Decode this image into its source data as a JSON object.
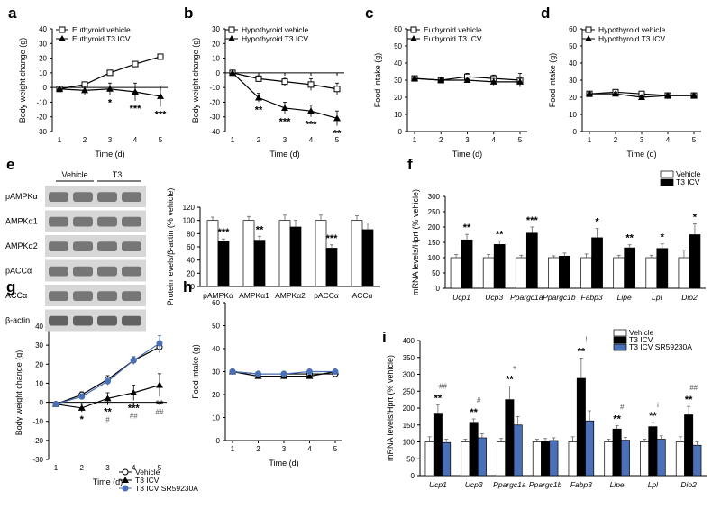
{
  "colors": {
    "black": "#000000",
    "white": "#ffffff",
    "blue": "#4a70b8",
    "blot_bg": "#d7d7d7",
    "blot_band": "#555555"
  },
  "chart_data": [
    {
      "id": "a",
      "type": "line",
      "panel_label": "a",
      "xlabel": "Time (d)",
      "ylabel": "Body weight change (g)",
      "xticks": [
        1,
        2,
        3,
        4,
        5
      ],
      "yticks": [
        -30,
        -20,
        -10,
        0,
        10,
        20,
        30,
        40
      ],
      "ylim": [
        -30,
        40
      ],
      "legend": "top-left",
      "series": [
        {
          "name": "Euthyroid vehicle",
          "marker": "open-square",
          "x": [
            1,
            2,
            3,
            4,
            5
          ],
          "y": [
            -1,
            2,
            10,
            16,
            21
          ],
          "err": [
            1,
            1.5,
            1.5,
            1.5,
            1.5
          ]
        },
        {
          "name": "Euthyroid T3 ICV",
          "marker": "filled-triangle",
          "x": [
            1,
            2,
            3,
            4,
            5
          ],
          "y": [
            -1,
            -2,
            -1,
            -3,
            -6
          ],
          "err": [
            1,
            3,
            4,
            6,
            7
          ]
        }
      ],
      "annotations": [
        {
          "x": 3,
          "text": "*"
        },
        {
          "x": 4,
          "text": "***"
        },
        {
          "x": 5,
          "text": "***"
        }
      ]
    },
    {
      "id": "b",
      "type": "line",
      "panel_label": "b",
      "xlabel": "Time (d)",
      "ylabel": "Body weight change (g)",
      "xticks": [
        1,
        2,
        3,
        4,
        5
      ],
      "yticks": [
        -40,
        -30,
        -20,
        -10,
        0,
        10,
        20,
        30
      ],
      "ylim": [
        -40,
        30
      ],
      "legend": "top-left",
      "series": [
        {
          "name": "Hypothyroid vehicle",
          "marker": "open-square",
          "x": [
            1,
            2,
            3,
            4,
            5
          ],
          "y": [
            0,
            -4,
            -6,
            -8,
            -11
          ],
          "err": [
            0,
            2,
            3,
            4,
            4
          ]
        },
        {
          "name": "Hypothyroid T3 ICV",
          "marker": "filled-triangle",
          "x": [
            1,
            2,
            3,
            4,
            5
          ],
          "y": [
            0,
            -17,
            -24,
            -26,
            -31
          ],
          "err": [
            0,
            3,
            4,
            4,
            5
          ]
        }
      ],
      "annotations": [
        {
          "x": 2,
          "text": "**"
        },
        {
          "x": 3,
          "text": "***"
        },
        {
          "x": 4,
          "text": "***"
        },
        {
          "x": 5,
          "text": "**"
        }
      ]
    },
    {
      "id": "c",
      "type": "line",
      "panel_label": "c",
      "xlabel": "Time (d)",
      "ylabel": "Food intake (g)",
      "xticks": [
        1,
        2,
        3,
        4,
        5
      ],
      "yticks": [
        0,
        10,
        20,
        30,
        40,
        50,
        60
      ],
      "ylim": [
        0,
        60
      ],
      "legend": "top-left",
      "series": [
        {
          "name": "Euthyroid vehicle",
          "marker": "open-square",
          "x": [
            1,
            2,
            3,
            4,
            5
          ],
          "y": [
            31,
            30,
            32,
            31,
            30
          ],
          "err": [
            1,
            1,
            2,
            2,
            4
          ]
        },
        {
          "name": "Euthyroid T3 ICV",
          "marker": "filled-triangle",
          "x": [
            1,
            2,
            3,
            4,
            5
          ],
          "y": [
            31,
            30,
            30,
            29,
            29
          ],
          "err": [
            1,
            1,
            1,
            2,
            2
          ]
        }
      ],
      "annotations": []
    },
    {
      "id": "d",
      "type": "line",
      "panel_label": "d",
      "xlabel": "Time (d)",
      "ylabel": "Food intake (g)",
      "xticks": [
        1,
        2,
        3,
        4,
        5
      ],
      "yticks": [
        0,
        10,
        20,
        30,
        40,
        50,
        60
      ],
      "ylim": [
        0,
        60
      ],
      "legend": "top-left",
      "series": [
        {
          "name": "Hypothyroid vehicle",
          "marker": "open-square",
          "x": [
            1,
            2,
            3,
            4,
            5
          ],
          "y": [
            22,
            23,
            22,
            21,
            21
          ],
          "err": [
            1,
            1,
            1,
            1,
            1
          ]
        },
        {
          "name": "Hypothyroid T3 ICV",
          "marker": "filled-triangle",
          "x": [
            1,
            2,
            3,
            4,
            5
          ],
          "y": [
            22,
            22,
            20,
            21,
            21
          ],
          "err": [
            1,
            1,
            1,
            1,
            1
          ]
        }
      ],
      "annotations": []
    },
    {
      "id": "e",
      "type": "bar",
      "panel_label": "e",
      "ylabel": "Protein levels/β-actin (% vehicle)",
      "categories": [
        "pAMPKα",
        "AMPKα1",
        "AMPKα2",
        "pACCα",
        "ACCα"
      ],
      "yticks": [
        0,
        20,
        40,
        60,
        80,
        100,
        120
      ],
      "ylim": [
        0,
        120
      ],
      "series": [
        {
          "fill": "white",
          "values": [
            100,
            100,
            100,
            100,
            100
          ],
          "err": [
            5,
            6,
            8,
            8,
            7
          ]
        },
        {
          "fill": "black",
          "values": [
            68,
            70,
            90,
            58,
            86
          ],
          "err": [
            4,
            6,
            10,
            5,
            10
          ]
        }
      ],
      "annotations": [
        {
          "category": "pAMPKα",
          "text": "***"
        },
        {
          "category": "AMPKα1",
          "text": "**"
        },
        {
          "category": "pACCα",
          "text": "***"
        }
      ]
    },
    {
      "id": "f",
      "type": "bar",
      "panel_label": "f",
      "ylabel": "mRNA levels/Hprt (% vehicle)",
      "categories": [
        "Ucp1",
        "Ucp3",
        "Ppargc1a",
        "Ppargc1b",
        "Fabp3",
        "Lipe",
        "Lpl",
        "Dio2"
      ],
      "yticks": [
        0,
        50,
        100,
        150,
        200,
        250,
        300
      ],
      "ylim": [
        0,
        300
      ],
      "legend": "top-right",
      "series": [
        {
          "name": "Vehicle",
          "fill": "white",
          "values": [
            100,
            100,
            100,
            100,
            100,
            100,
            100,
            100
          ],
          "err": [
            10,
            10,
            8,
            6,
            12,
            8,
            8,
            25
          ]
        },
        {
          "name": "T3 ICV",
          "fill": "black",
          "values": [
            158,
            143,
            180,
            105,
            165,
            132,
            130,
            175
          ],
          "err": [
            18,
            12,
            20,
            10,
            30,
            10,
            15,
            35
          ]
        }
      ],
      "annotations": [
        {
          "category": "Ucp1",
          "text": "**"
        },
        {
          "category": "Ucp3",
          "text": "**"
        },
        {
          "category": "Ppargc1a",
          "text": "***"
        },
        {
          "category": "Fabp3",
          "text": "*"
        },
        {
          "category": "Lipe",
          "text": "**"
        },
        {
          "category": "Lpl",
          "text": "*"
        },
        {
          "category": "Dio2",
          "text": "*"
        }
      ]
    },
    {
      "id": "g",
      "type": "line",
      "panel_label": "g",
      "xlabel": "Time (d)",
      "ylabel": "Body weight change (g)",
      "xticks": [
        1,
        2,
        3,
        4,
        5
      ],
      "yticks": [
        -30,
        -20,
        -10,
        0,
        10,
        20,
        30,
        40
      ],
      "ylim": [
        -30,
        40
      ],
      "legend": "bottom",
      "series": [
        {
          "name": "Vehicle",
          "marker": "open-circle",
          "color": "black",
          "x": [
            1,
            2,
            3,
            4,
            5
          ],
          "y": [
            -1,
            4,
            12,
            22,
            29
          ],
          "err": [
            1,
            1.5,
            2,
            2,
            3
          ]
        },
        {
          "name": "T3 ICV",
          "marker": "filled-triangle",
          "color": "black",
          "x": [
            1,
            2,
            3,
            4,
            5
          ],
          "y": [
            -1,
            -3,
            2,
            5,
            9
          ],
          "err": [
            1,
            2,
            3,
            4,
            6
          ]
        },
        {
          "name": "T3 ICV SR59230A",
          "marker": "filled-circle",
          "color": "blue",
          "x": [
            1,
            2,
            3,
            4,
            5
          ],
          "y": [
            -1,
            3,
            11,
            22,
            31
          ],
          "err": [
            1,
            1.5,
            2,
            2,
            4
          ]
        }
      ],
      "annotations": [
        {
          "x": 2,
          "text": "*"
        },
        {
          "x": 3,
          "text": "**"
        },
        {
          "x": 3,
          "text": "#"
        },
        {
          "x": 4,
          "text": "***"
        },
        {
          "x": 4,
          "text": "##"
        },
        {
          "x": 5,
          "text": "**"
        },
        {
          "x": 5,
          "text": "##"
        }
      ]
    },
    {
      "id": "h",
      "type": "line",
      "panel_label": "h",
      "xlabel": "Time (d)",
      "ylabel": "Food intake (g)",
      "xticks": [
        1,
        2,
        3,
        4,
        5
      ],
      "yticks": [
        0,
        10,
        20,
        30,
        40,
        50,
        60
      ],
      "ylim": [
        0,
        60
      ],
      "series": [
        {
          "marker": "open-circle",
          "color": "black",
          "x": [
            1,
            2,
            3,
            4,
            5
          ],
          "y": [
            30,
            29,
            29,
            29,
            29
          ],
          "err": [
            0.5,
            1,
            1,
            1,
            1
          ]
        },
        {
          "marker": "filled-triangle",
          "color": "black",
          "x": [
            1,
            2,
            3,
            4,
            5
          ],
          "y": [
            30,
            28,
            28,
            28,
            30
          ],
          "err": [
            0.5,
            1,
            1,
            1,
            1
          ]
        },
        {
          "marker": "filled-circle",
          "color": "blue",
          "x": [
            1,
            2,
            3,
            4,
            5
          ],
          "y": [
            30,
            29,
            29,
            30,
            30
          ],
          "err": [
            0.5,
            1,
            1,
            1,
            1
          ]
        }
      ],
      "annotations": []
    },
    {
      "id": "i",
      "type": "bar",
      "panel_label": "i",
      "ylabel": "mRNA levels/Hprt (% vehicle)",
      "categories": [
        "Ucp1",
        "Ucp3",
        "Ppargc1a",
        "Ppargc1b",
        "Fabp3",
        "Lipe",
        "Lpl",
        "Dio2"
      ],
      "yticks": [
        0,
        50,
        100,
        150,
        200,
        250,
        300,
        350,
        400
      ],
      "ylim": [
        0,
        400
      ],
      "legend": "top-right",
      "series": [
        {
          "name": "Vehicle",
          "fill": "white",
          "values": [
            100,
            100,
            100,
            100,
            100,
            100,
            100,
            100
          ],
          "err": [
            15,
            8,
            10,
            8,
            15,
            8,
            8,
            15
          ]
        },
        {
          "name": "T3 ICV",
          "fill": "black",
          "values": [
            185,
            158,
            225,
            102,
            288,
            138,
            145,
            180
          ],
          "err": [
            25,
            10,
            40,
            8,
            60,
            10,
            12,
            25
          ]
        },
        {
          "name": "T3 ICV SR59230A",
          "fill": "blue",
          "values": [
            98,
            112,
            150,
            104,
            162,
            105,
            108,
            90
          ],
          "err": [
            10,
            12,
            25,
            8,
            30,
            8,
            10,
            10
          ]
        }
      ],
      "annotations": [
        {
          "category": "Ucp1",
          "text": "**"
        },
        {
          "category": "Ucp1",
          "text": "##"
        },
        {
          "category": "Ucp3",
          "text": "**"
        },
        {
          "category": "Ucp3",
          "text": "#"
        },
        {
          "category": "Ppargc1a",
          "text": "**"
        },
        {
          "category": "Ppargc1a",
          "text": "+"
        },
        {
          "category": "Fabp3",
          "text": "**"
        },
        {
          "category": "Fabp3",
          "text": "!"
        },
        {
          "category": "Lipe",
          "text": "**"
        },
        {
          "category": "Lipe",
          "text": "#"
        },
        {
          "category": "Lpl",
          "text": "**"
        },
        {
          "category": "Lpl",
          "text": "¡"
        },
        {
          "category": "Dio2",
          "text": "**"
        },
        {
          "category": "Dio2",
          "text": "##"
        }
      ]
    }
  ],
  "blot": {
    "group_labels": [
      "Vehicle",
      "T3"
    ],
    "rows": [
      "pAMPKα",
      "AMPKα1",
      "AMPKα2",
      "pACCα",
      "ACCα",
      "β-actin"
    ]
  }
}
